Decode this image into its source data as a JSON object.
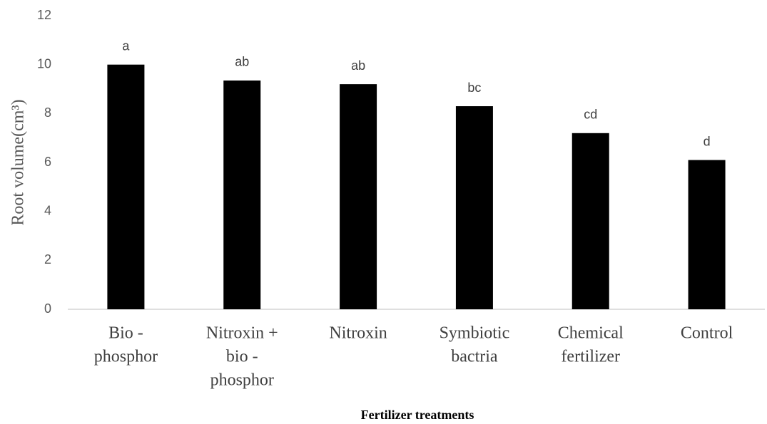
{
  "chart_data": {
    "type": "bar",
    "categories": [
      [
        "Bio -",
        "phosphor"
      ],
      [
        "Nitroxin +",
        "bio -",
        "phosphor"
      ],
      [
        "Nitroxin"
      ],
      [
        "Symbiotic",
        "bactria"
      ],
      [
        "Chemical",
        "fertilizer"
      ],
      [
        "Control"
      ]
    ],
    "values": [
      10.0,
      9.35,
      9.2,
      8.3,
      7.2,
      6.1
    ],
    "annotations": [
      "a",
      "ab",
      "ab",
      "bc",
      "cd",
      "d"
    ],
    "color": "#000000",
    "ylabel": "Root volume(cm³)",
    "xlabel": "Fertilizer treatments",
    "ylim": [
      0,
      12
    ],
    "yticks": [
      0,
      2,
      4,
      6,
      8,
      10,
      12
    ],
    "grid": false
  }
}
